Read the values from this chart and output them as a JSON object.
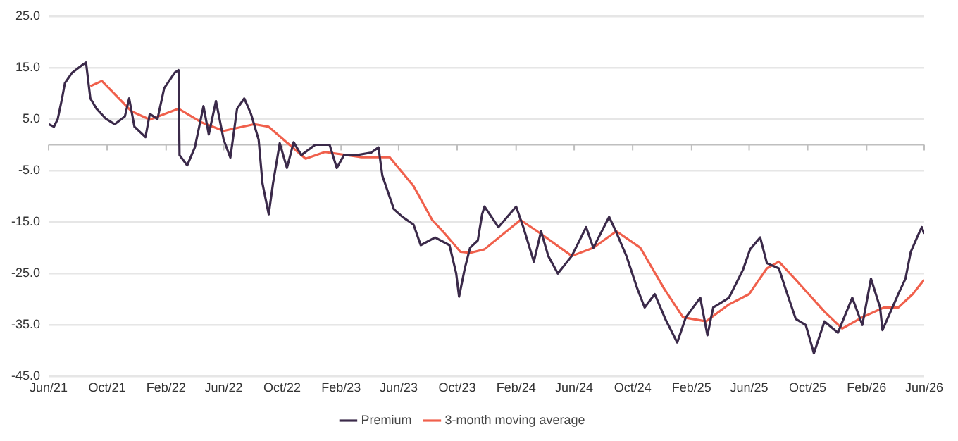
{
  "chart_data": {
    "type": "line",
    "legend": "bottom",
    "grid": "y",
    "marker": "none",
    "line_style": "solid",
    "xlim": [
      "2021-06-01",
      "2026-06-01"
    ],
    "xticks": [
      {
        "value": "2021-06-01",
        "label": "Jun/21"
      },
      {
        "value": "2021-10-01",
        "label": "Oct/21"
      },
      {
        "value": "2022-02-01",
        "label": "Feb/22"
      },
      {
        "value": "2022-06-01",
        "label": "Jun/22"
      },
      {
        "value": "2022-10-01",
        "label": "Oct/22"
      },
      {
        "value": "2023-02-01",
        "label": "Feb/23"
      },
      {
        "value": "2023-06-01",
        "label": "Jun/23"
      },
      {
        "value": "2023-10-01",
        "label": "Oct/23"
      },
      {
        "value": "2024-02-01",
        "label": "Feb/24"
      },
      {
        "value": "2024-06-01",
        "label": "Jun/24"
      },
      {
        "value": "2024-10-01",
        "label": "Oct/24"
      },
      {
        "value": "2025-02-01",
        "label": "Feb/25"
      },
      {
        "value": "2025-06-01",
        "label": "Jun/25"
      },
      {
        "value": "2025-10-01",
        "label": "Oct/25"
      },
      {
        "value": "2026-02-01",
        "label": "Feb/26"
      },
      {
        "value": "2026-06-01",
        "label": "Jun/26"
      }
    ],
    "ylim": [
      -45,
      25
    ],
    "yticks": [
      {
        "value": -45,
        "label": "-45.0"
      },
      {
        "value": -35,
        "label": "-35.0"
      },
      {
        "value": -25,
        "label": "-25.0"
      },
      {
        "value": -15,
        "label": "-15.0"
      },
      {
        "value": -5,
        "label": "-5.0"
      },
      {
        "value": 5,
        "label": "5.0"
      },
      {
        "value": 15,
        "label": "15.0"
      },
      {
        "value": 25,
        "label": "25.0"
      }
    ],
    "series": [
      {
        "name": "Premium",
        "color": "#3b2a4a",
        "x": [
          "2021-06-01",
          "2021-06-12",
          "2021-06-20",
          "2021-06-29",
          "2021-07-05",
          "2021-07-20",
          "2021-08-10",
          "2021-08-18",
          "2021-08-27",
          "2021-09-09",
          "2021-09-29",
          "2021-10-17",
          "2021-11-07",
          "2021-11-16",
          "2021-11-27",
          "2021-12-20",
          "2021-12-29",
          "2022-01-14",
          "2022-01-28",
          "2022-02-19",
          "2022-02-27",
          "2022-03-01",
          "2022-03-17",
          "2022-04-02",
          "2022-04-20",
          "2022-05-01",
          "2022-05-16",
          "2022-06-01",
          "2022-06-15",
          "2022-06-29",
          "2022-07-14",
          "2022-07-28",
          "2022-08-13",
          "2022-08-21",
          "2022-09-03",
          "2022-09-12",
          "2022-09-26",
          "2022-10-11",
          "2022-10-25",
          "2022-11-10",
          "2022-12-09",
          "2023-01-08",
          "2023-01-23",
          "2023-02-07",
          "2023-03-06",
          "2023-04-05",
          "2023-04-20",
          "2023-04-28",
          "2023-05-22",
          "2023-06-09",
          "2023-07-02",
          "2023-07-17",
          "2023-08-16",
          "2023-09-15",
          "2023-09-29",
          "2023-10-05",
          "2023-10-17",
          "2023-10-28",
          "2023-11-13",
          "2023-11-22",
          "2023-11-27",
          "2023-12-26",
          "2024-02-01",
          "2024-02-16",
          "2024-03-09",
          "2024-03-24",
          "2024-04-08",
          "2024-04-28",
          "2024-05-27",
          "2024-06-26",
          "2024-07-11",
          "2024-08-13",
          "2024-08-28",
          "2024-09-18",
          "2024-10-11",
          "2024-10-26",
          "2024-11-16",
          "2024-12-09",
          "2025-01-02",
          "2025-01-20",
          "2025-02-19",
          "2025-03-06",
          "2025-03-18",
          "2025-04-20",
          "2025-05-19",
          "2025-06-03",
          "2025-06-24",
          "2025-07-08",
          "2025-08-02",
          "2025-08-16",
          "2025-09-06",
          "2025-09-27",
          "2025-10-14",
          "2025-11-05",
          "2025-12-03",
          "2026-01-02",
          "2026-01-23",
          "2026-02-10",
          "2026-03-01",
          "2026-03-06",
          "2026-04-08",
          "2026-04-23",
          "2026-05-04",
          "2026-05-19",
          "2026-05-27",
          "2026-06-01"
        ],
        "values": [
          4,
          3.5,
          5,
          9,
          12,
          14,
          15.5,
          16,
          9,
          7,
          5,
          4,
          5.5,
          9,
          3.5,
          1.5,
          6,
          5,
          11,
          14,
          14.5,
          -2,
          -4,
          -0.5,
          7.5,
          2,
          8.5,
          1,
          -2.5,
          7,
          9,
          6,
          1,
          -7.5,
          -13.5,
          -7.5,
          0.3,
          -4.5,
          0.5,
          -2,
          0,
          0,
          -4.5,
          -2,
          -2,
          -1.5,
          -0.5,
          -6,
          -12.5,
          -14,
          -15.5,
          -19.5,
          -18,
          -19.5,
          -25,
          -29.5,
          -24,
          -20,
          -18.6,
          -13.5,
          -12,
          -16,
          -12,
          -16,
          -22.7,
          -16.8,
          -21.6,
          -25,
          -21.6,
          -16,
          -20,
          -14,
          -17,
          -21.6,
          -28,
          -31.6,
          -29,
          -34,
          -38.4,
          -33.5,
          -29.7,
          -37,
          -31.6,
          -29.7,
          -24.3,
          -20.3,
          -18,
          -23,
          -24,
          -28,
          -33.8,
          -35,
          -40.5,
          -34.3,
          -36.5,
          -29.7,
          -35,
          -26,
          -31.6,
          -36,
          -29,
          -26,
          -20.8,
          -17.6,
          -16,
          -17.3
        ]
      },
      {
        "name": "3-month moving average",
        "color": "#f0604c",
        "x": [
          "2021-08-27",
          "2021-09-20",
          "2021-11-21",
          "2021-12-29",
          "2022-02-27",
          "2022-04-17",
          "2022-06-01",
          "2022-08-04",
          "2022-09-03",
          "2022-11-19",
          "2022-12-29",
          "2023-03-15",
          "2023-05-13",
          "2023-07-02",
          "2023-08-10",
          "2023-09-01",
          "2023-10-08",
          "2023-10-28",
          "2023-11-27",
          "2024-02-10",
          "2024-03-24",
          "2024-05-27",
          "2024-07-11",
          "2024-08-28",
          "2024-10-17",
          "2024-12-06",
          "2025-01-14",
          "2025-03-03",
          "2025-04-20",
          "2025-06-01",
          "2025-07-08",
          "2025-08-02",
          "2025-09-06",
          "2025-11-05",
          "2025-12-12",
          "2026-01-23",
          "2026-03-09",
          "2026-04-08",
          "2026-05-08",
          "2026-06-01"
        ],
        "values": [
          11.4,
          12.4,
          6.5,
          4.9,
          7,
          4.3,
          2.7,
          4,
          3.5,
          -2.7,
          -1.4,
          -2.4,
          -2.4,
          -8,
          -14.6,
          -16.8,
          -20.8,
          -21,
          -20.3,
          -14.6,
          -17.3,
          -21.6,
          -20,
          -16.8,
          -20,
          -28,
          -33.5,
          -34.3,
          -31,
          -29,
          -24,
          -22.7,
          -26.2,
          -32.4,
          -35.7,
          -33.5,
          -31.6,
          -31.6,
          -29,
          -26.2
        ]
      }
    ]
  }
}
